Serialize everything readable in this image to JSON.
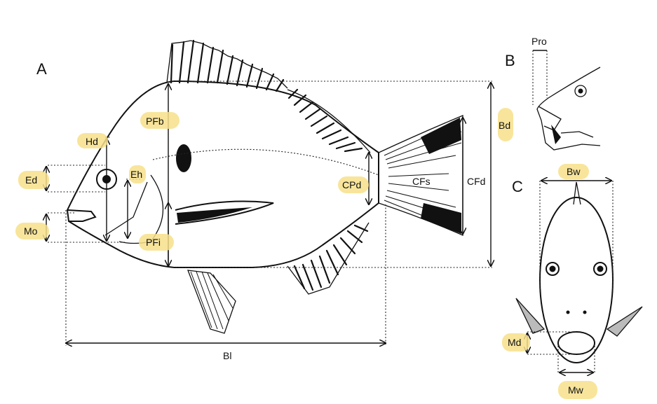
{
  "panels": {
    "a": "A",
    "b": "B",
    "c": "C"
  },
  "measurements": {
    "hd": "Hd",
    "ed": "Ed",
    "eh": "Eh",
    "mo": "Mo",
    "pfb": "PFb",
    "pfi": "PFi",
    "cpd": "CPd",
    "cfs": "CFs",
    "cfd": "CFd",
    "bd": "Bd",
    "bl": "Bl",
    "pro": "Pro",
    "bw": "Bw",
    "md": "Md",
    "mw": "Mw"
  },
  "colors": {
    "highlight": "#f7e08a",
    "ink": "#111111"
  }
}
